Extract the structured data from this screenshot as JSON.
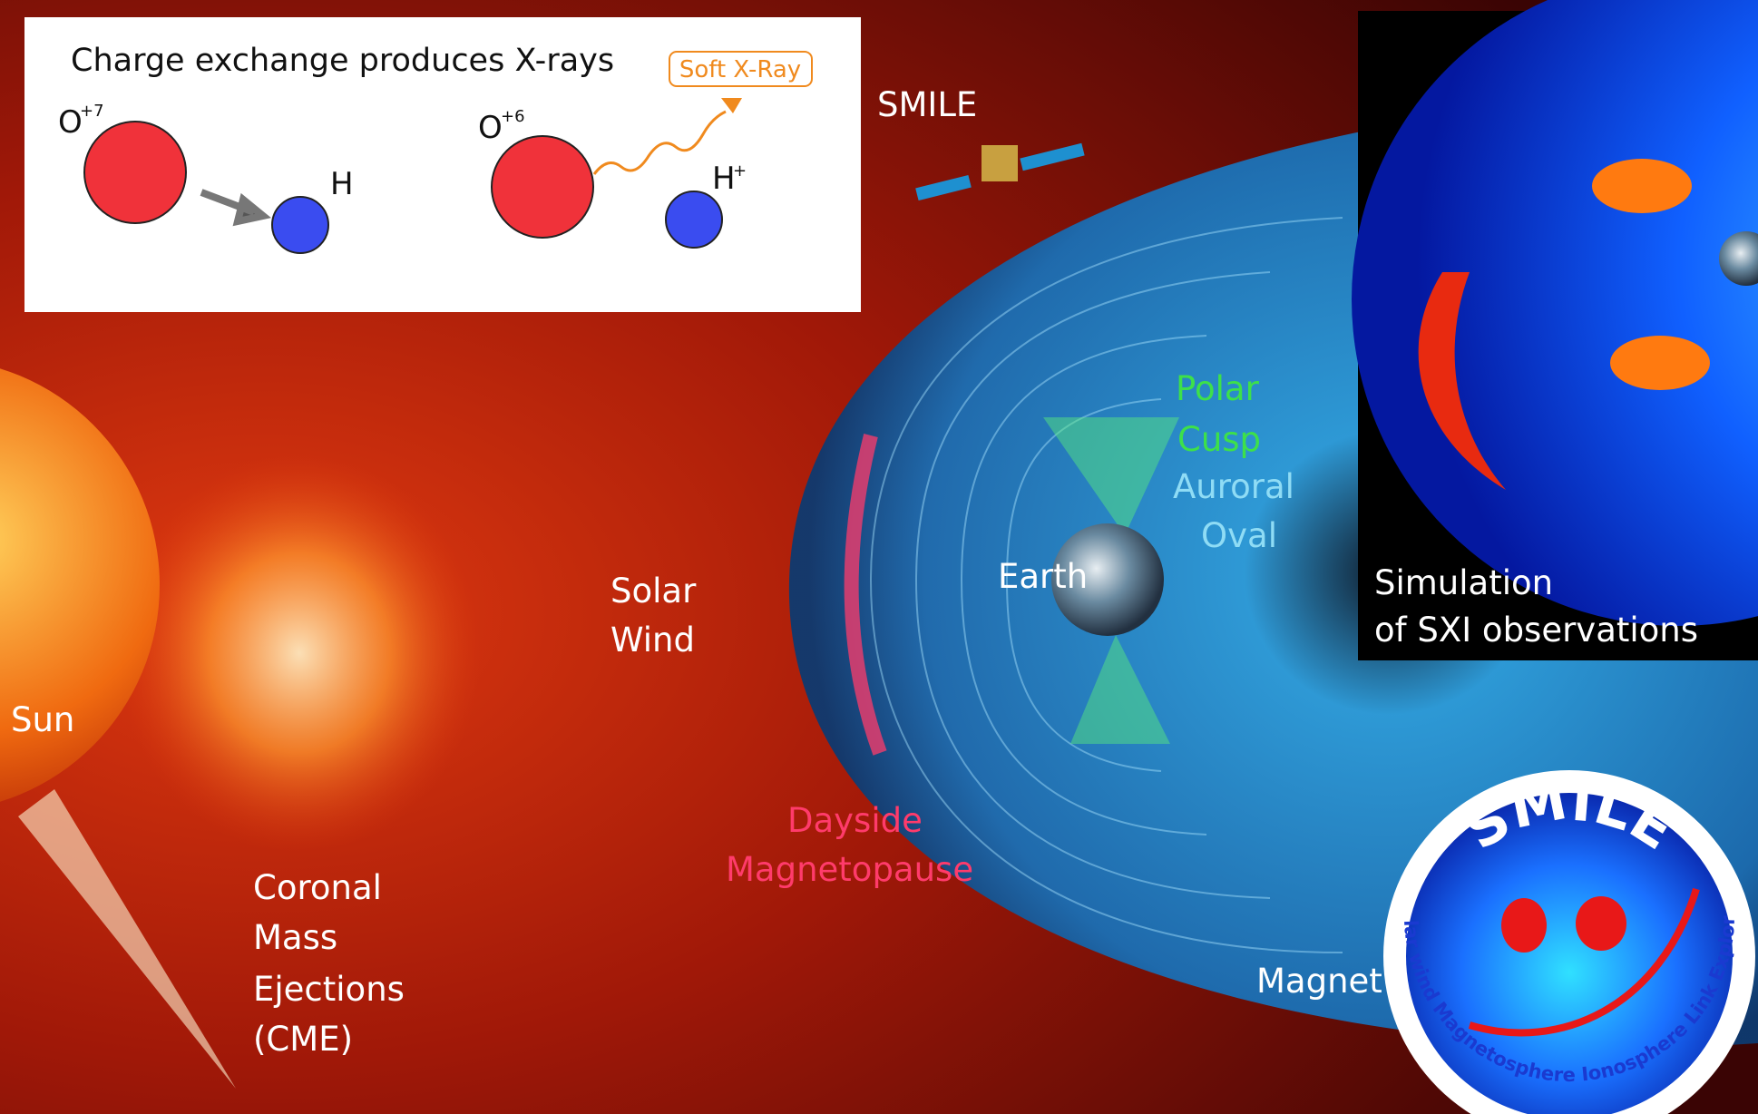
{
  "inset": {
    "title": "Charge exchange produces X-rays",
    "before": {
      "ion": "O",
      "ion_charge": "+7",
      "neutral": "H"
    },
    "after": {
      "ion": "O",
      "ion_charge": "+6",
      "product": "H",
      "product_charge": "+"
    },
    "photon": "Soft X-Ray"
  },
  "labels": {
    "mission": "SMILE",
    "sun": "Sun",
    "solar_wind": [
      "Solar",
      "Wind"
    ],
    "cme": [
      "Coronal",
      "Mass",
      "Ejections",
      "(CME)"
    ],
    "magnetopause": [
      "Dayside",
      "Magnetopause"
    ],
    "cusp": [
      "Polar",
      "Cusp"
    ],
    "oval": [
      "Auroral",
      "Oval"
    ],
    "earth": "Earth",
    "magnetosphere": "Magnet"
  },
  "simulation": [
    "Simulation",
    "of SXI observations"
  ],
  "logo": {
    "title": "SMILE",
    "subtitle": "Solar wind Magnetosphere Ionosphere Link Explorer"
  }
}
